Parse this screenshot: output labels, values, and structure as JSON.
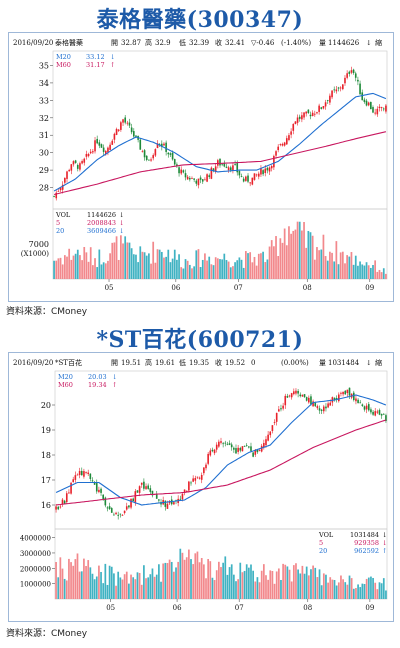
{
  "colors": {
    "up": "#e8222b",
    "down": "#1e8a3a",
    "ma20": "#1f6fd0",
    "ma60": "#c8175f",
    "vol_up": "#f2888c",
    "vol_down": "#3fb2c2",
    "title": "#1d5aa8"
  },
  "charts": [
    {
      "title": "泰格醫藥(300347)",
      "info": {
        "date": "2016/09/20",
        "name": "泰格醫藥",
        "open_label": "開",
        "open": "32.87",
        "high_label": "高",
        "high": "32.9",
        "low_label": "低",
        "low": "32.39",
        "close_label": "收",
        "close": "32.41",
        "change": "▽-0.46",
        "pct": "(-1.40%)",
        "vol_label": "量",
        "vol": "1144626",
        "vol_arrow": "↓",
        "zoom": "縮"
      },
      "ma": [
        {
          "label": "M20",
          "value": "33.12",
          "arrow": "↓"
        },
        {
          "label": "M60",
          "value": "31.17",
          "arrow": "↑"
        }
      ],
      "vol_info": [
        {
          "label": "VOL",
          "value": "1144626",
          "arrow": "↓"
        },
        {
          "label": "5",
          "value": "2008843",
          "arrow": "↓"
        },
        {
          "label": "20",
          "value": "3609466",
          "arrow": "↓"
        }
      ],
      "source": "資料來源：CMoney"
    },
    {
      "title": "*ST百花(600721)",
      "info": {
        "date": "2016/09/20",
        "name": "*ST百花",
        "open_label": "開",
        "open": "19.51",
        "high_label": "高",
        "high": "19.61",
        "low_label": "低",
        "low": "19.35",
        "close_label": "收",
        "close": "19.52",
        "change": "0",
        "pct": "(0.00%)",
        "vol_label": "量",
        "vol": "1031484",
        "vol_arrow": "↓",
        "zoom": "縮"
      },
      "ma": [
        {
          "label": "M20",
          "value": "20.03",
          "arrow": "↓"
        },
        {
          "label": "M60",
          "value": "19.34",
          "arrow": "↑"
        }
      ],
      "vol_info": [
        {
          "label": "VOL",
          "value": "1031484",
          "arrow": "↓"
        },
        {
          "label": "5",
          "value": "929358",
          "arrow": "↓"
        },
        {
          "label": "20",
          "value": "962592",
          "arrow": "↑"
        }
      ],
      "source": "資料來源：CMoney"
    }
  ],
  "chart_data": [
    {
      "type": "candlestick",
      "title": "泰格醫藥(300347)",
      "x_ticks": [
        "05",
        "06",
        "07",
        "08",
        "09"
      ],
      "y_ticks": [
        28,
        29,
        30,
        31,
        32,
        33,
        34,
        35
      ],
      "ylim": [
        27.0,
        35.6
      ],
      "vol_y_tick": "7000",
      "vol_y_unit": "(X1000)",
      "vol_max": 12000,
      "anchors": {
        "close": [
          [
            0,
            27.5
          ],
          [
            4,
            28.3
          ],
          [
            8,
            29.4
          ],
          [
            12,
            29.2
          ],
          [
            16,
            29.9
          ],
          [
            20,
            30.7
          ],
          [
            24,
            30.1
          ],
          [
            28,
            31.1
          ],
          [
            32,
            31.9
          ],
          [
            36,
            31.2
          ],
          [
            40,
            30.3
          ],
          [
            44,
            29.4
          ],
          [
            48,
            30.7
          ],
          [
            52,
            30.2
          ],
          [
            56,
            29.3
          ],
          [
            60,
            28.7
          ],
          [
            64,
            28.5
          ],
          [
            68,
            28.3
          ],
          [
            72,
            28.8
          ],
          [
            76,
            29.4
          ],
          [
            80,
            29.3
          ],
          [
            84,
            29.1
          ],
          [
            88,
            28.4
          ],
          [
            92,
            28.5
          ],
          [
            96,
            28.9
          ],
          [
            100,
            29.2
          ],
          [
            104,
            30.2
          ],
          [
            108,
            30.9
          ],
          [
            112,
            31.9
          ],
          [
            116,
            32.1
          ],
          [
            120,
            32.3
          ],
          [
            124,
            32.6
          ],
          [
            128,
            33.3
          ],
          [
            132,
            33.6
          ],
          [
            136,
            34.4
          ],
          [
            138,
            34.9
          ],
          [
            140,
            34.3
          ],
          [
            143,
            33.1
          ],
          [
            146,
            32.8
          ],
          [
            149,
            32.2
          ],
          [
            152,
            32.6
          ],
          [
            154,
            32.5
          ]
        ],
        "ma20": [
          [
            0,
            27.8
          ],
          [
            10,
            28.5
          ],
          [
            20,
            29.6
          ],
          [
            30,
            30.4
          ],
          [
            38,
            30.9
          ],
          [
            46,
            30.6
          ],
          [
            56,
            30.0
          ],
          [
            66,
            29.2
          ],
          [
            76,
            28.9
          ],
          [
            86,
            29.0
          ],
          [
            94,
            29.0
          ],
          [
            104,
            29.5
          ],
          [
            114,
            30.5
          ],
          [
            124,
            31.6
          ],
          [
            132,
            32.4
          ],
          [
            140,
            33.2
          ],
          [
            148,
            33.4
          ],
          [
            154,
            33.1
          ]
        ],
        "ma60": [
          [
            0,
            27.6
          ],
          [
            20,
            28.2
          ],
          [
            40,
            28.9
          ],
          [
            60,
            29.3
          ],
          [
            80,
            29.4
          ],
          [
            96,
            29.5
          ],
          [
            110,
            29.9
          ],
          [
            124,
            30.3
          ],
          [
            140,
            30.8
          ],
          [
            154,
            31.2
          ]
        ]
      },
      "volume_anchors": [
        [
          0,
          3500
        ],
        [
          10,
          4800
        ],
        [
          20,
          3800
        ],
        [
          30,
          6000
        ],
        [
          40,
          4200
        ],
        [
          50,
          5500
        ],
        [
          60,
          3200
        ],
        [
          70,
          4000
        ],
        [
          80,
          3800
        ],
        [
          90,
          3600
        ],
        [
          100,
          4200
        ],
        [
          108,
          10000
        ],
        [
          112,
          8000
        ],
        [
          120,
          6500
        ],
        [
          130,
          5000
        ],
        [
          140,
          3500
        ],
        [
          148,
          2600
        ],
        [
          154,
          1200
        ]
      ]
    },
    {
      "type": "candlestick",
      "title": "*ST百花(600721)",
      "x_ticks": [
        "05",
        "06",
        "07",
        "08",
        "09"
      ],
      "y_ticks": [
        16,
        17,
        18,
        19,
        20
      ],
      "ylim": [
        15.2,
        21.2
      ],
      "vol_y_ticks": [
        1000000,
        2000000,
        3000000,
        4000000
      ],
      "vol_max": 4300000,
      "anchors": {
        "close": [
          [
            0,
            15.8
          ],
          [
            4,
            16.2
          ],
          [
            8,
            17.0
          ],
          [
            12,
            17.3
          ],
          [
            16,
            17.1
          ],
          [
            20,
            16.5
          ],
          [
            24,
            16.0
          ],
          [
            28,
            15.6
          ],
          [
            32,
            15.8
          ],
          [
            36,
            16.3
          ],
          [
            40,
            16.8
          ],
          [
            44,
            16.5
          ],
          [
            48,
            16.2
          ],
          [
            52,
            16.0
          ],
          [
            56,
            16.1
          ],
          [
            60,
            16.6
          ],
          [
            64,
            17.0
          ],
          [
            68,
            17.3
          ],
          [
            72,
            18.1
          ],
          [
            76,
            18.6
          ],
          [
            80,
            18.5
          ],
          [
            84,
            18.1
          ],
          [
            88,
            18.3
          ],
          [
            92,
            18.0
          ],
          [
            96,
            18.3
          ],
          [
            100,
            19.0
          ],
          [
            104,
            19.8
          ],
          [
            108,
            20.4
          ],
          [
            112,
            20.6
          ],
          [
            116,
            20.3
          ],
          [
            120,
            20.0
          ],
          [
            124,
            19.8
          ],
          [
            128,
            20.1
          ],
          [
            132,
            20.4
          ],
          [
            136,
            20.6
          ],
          [
            140,
            20.2
          ],
          [
            144,
            19.9
          ],
          [
            148,
            19.7
          ],
          [
            151,
            19.6
          ],
          [
            154,
            19.5
          ]
        ],
        "ma20": [
          [
            0,
            16.5
          ],
          [
            10,
            16.9
          ],
          [
            20,
            16.9
          ],
          [
            30,
            16.3
          ],
          [
            40,
            16.0
          ],
          [
            50,
            16.1
          ],
          [
            60,
            16.2
          ],
          [
            70,
            16.7
          ],
          [
            80,
            17.6
          ],
          [
            90,
            18.1
          ],
          [
            100,
            18.4
          ],
          [
            110,
            19.3
          ],
          [
            120,
            20.1
          ],
          [
            130,
            20.2
          ],
          [
            140,
            20.4
          ],
          [
            148,
            20.2
          ],
          [
            154,
            20.0
          ]
        ],
        "ma60": [
          [
            0,
            16.0
          ],
          [
            20,
            16.2
          ],
          [
            40,
            16.4
          ],
          [
            60,
            16.5
          ],
          [
            80,
            16.8
          ],
          [
            100,
            17.4
          ],
          [
            120,
            18.3
          ],
          [
            140,
            19.0
          ],
          [
            154,
            19.4
          ]
        ]
      },
      "volume_anchors": [
        [
          0,
          1900000
        ],
        [
          10,
          2400000
        ],
        [
          20,
          1700000
        ],
        [
          30,
          1300000
        ],
        [
          40,
          1600000
        ],
        [
          50,
          1800000
        ],
        [
          60,
          2600000
        ],
        [
          70,
          1900000
        ],
        [
          80,
          2300000
        ],
        [
          90,
          1600000
        ],
        [
          100,
          1800000
        ],
        [
          110,
          1700000
        ],
        [
          120,
          1600000
        ],
        [
          130,
          1300000
        ],
        [
          140,
          1100000
        ],
        [
          150,
          1000000
        ],
        [
          154,
          1000000
        ]
      ]
    }
  ]
}
